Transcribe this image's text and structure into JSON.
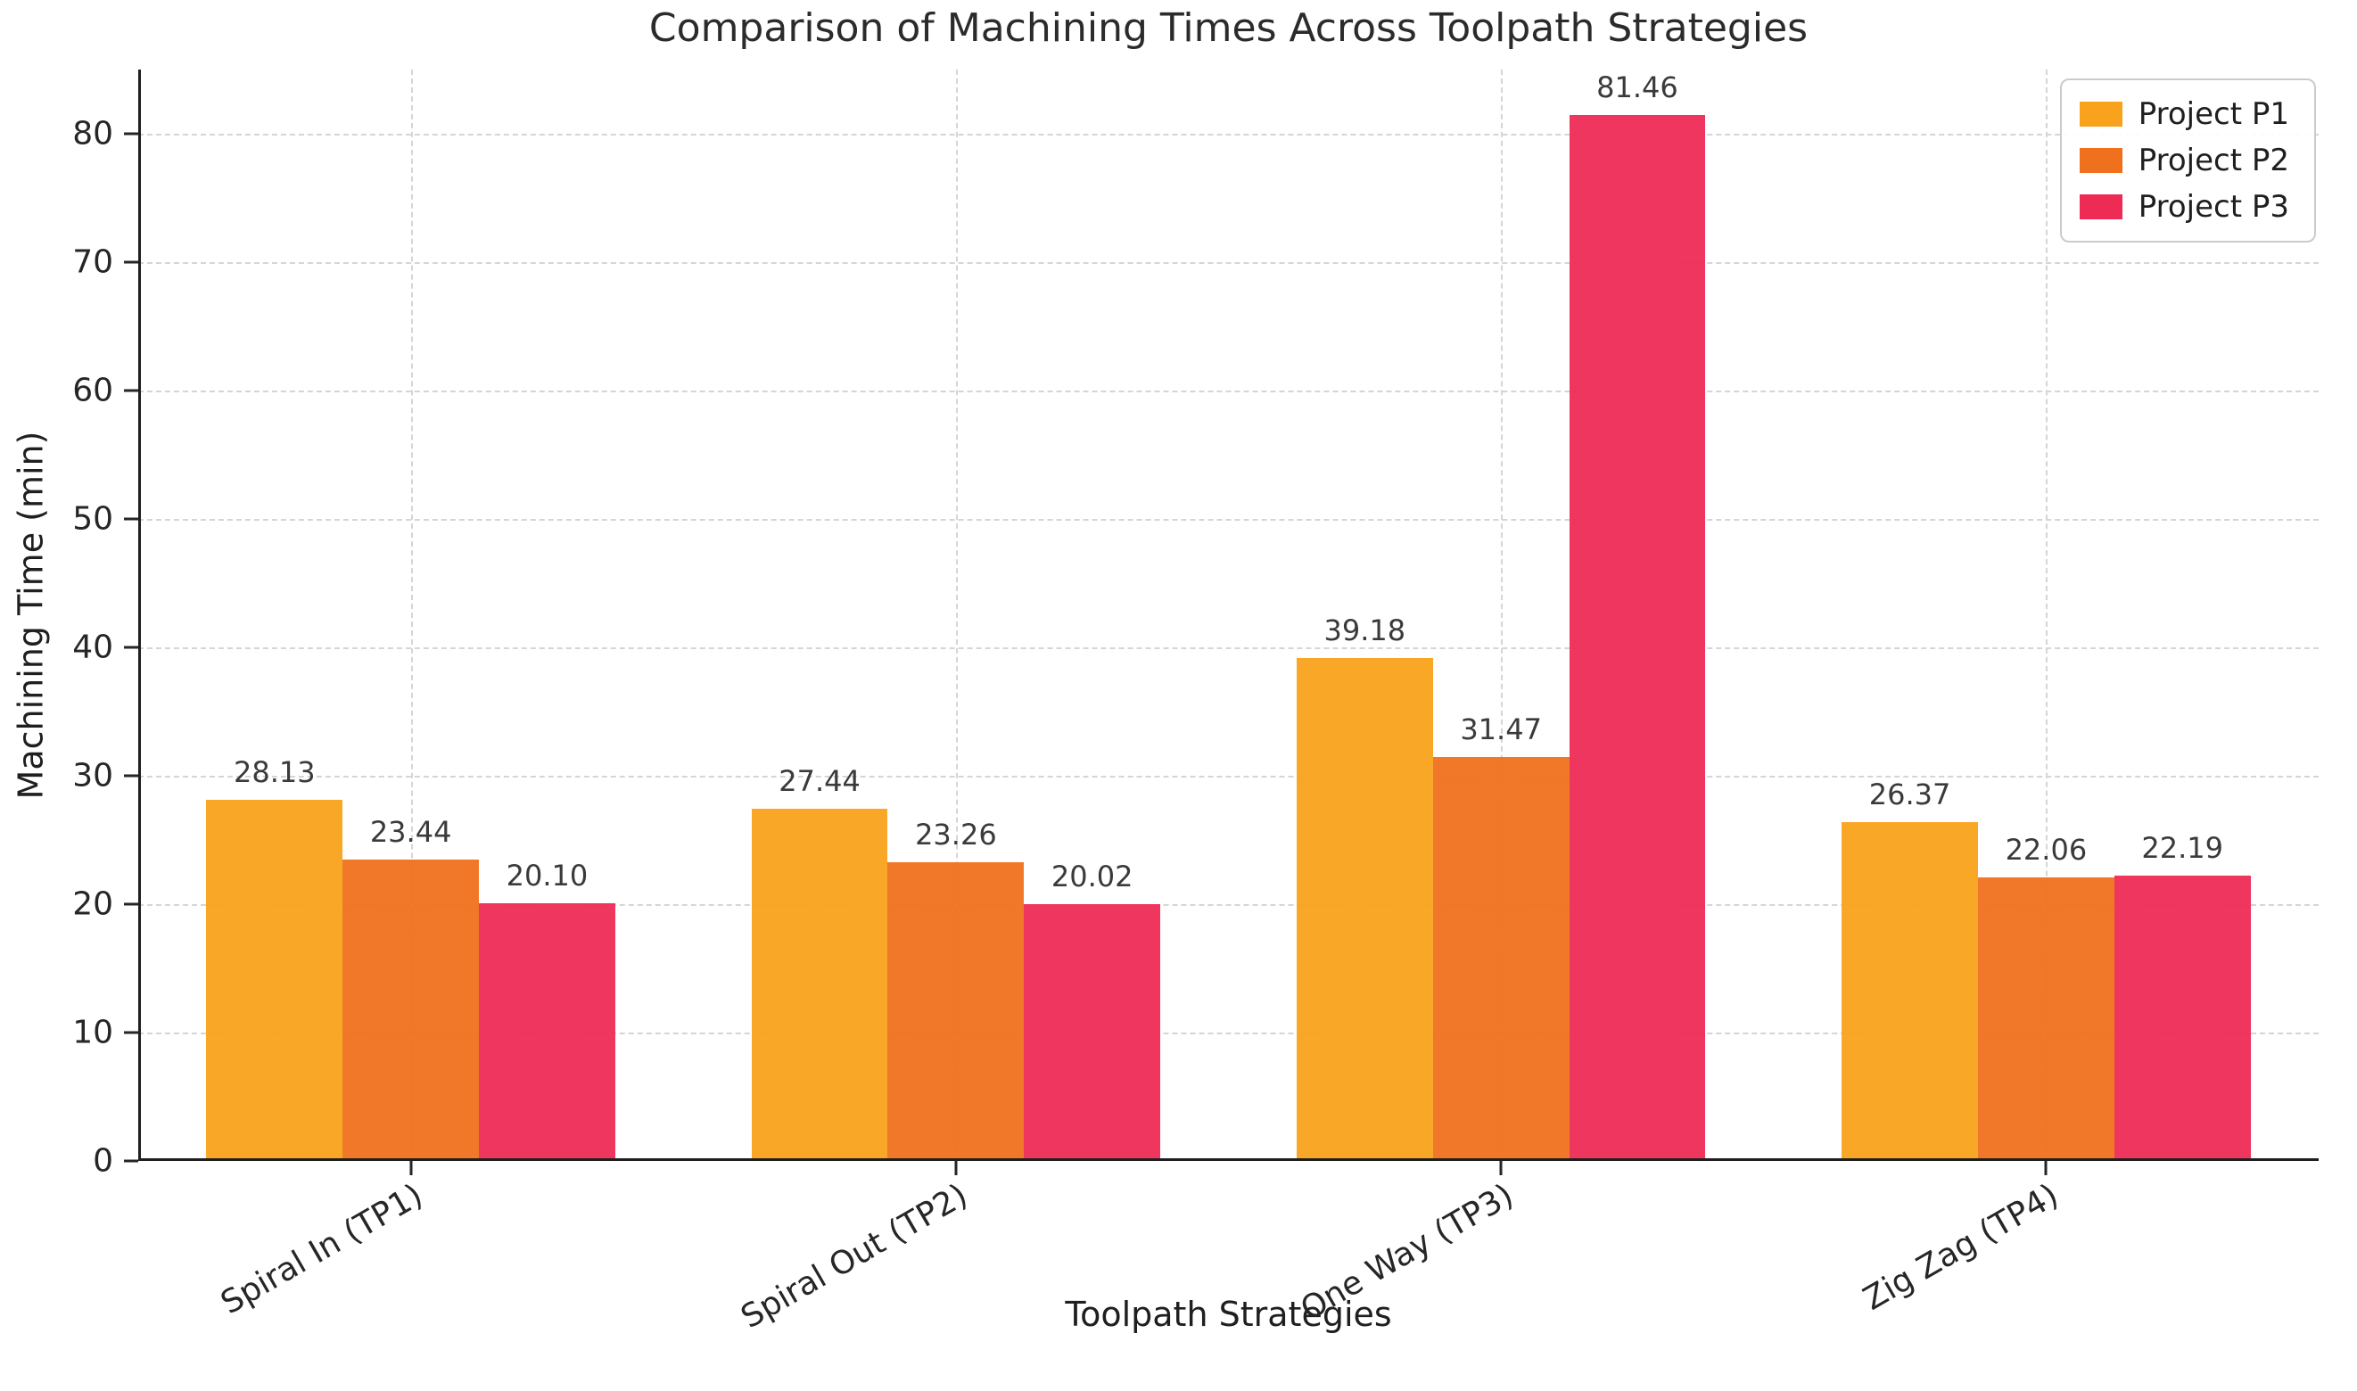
{
  "chart_data": {
    "type": "bar",
    "title": "Comparison of Machining Times Across Toolpath Strategies",
    "xlabel": "Toolpath Strategies",
    "ylabel": "Machining Time (min)",
    "categories": [
      "Spiral In (TP1)",
      "Spiral Out (TP2)",
      "One Way (TP3)",
      "Zig Zag (TP4)"
    ],
    "series": [
      {
        "name": "Project P1",
        "color": "#F9A21B",
        "values": [
          28.13,
          27.44,
          39.18,
          26.37
        ]
      },
      {
        "name": "Project P2",
        "color": "#F0711D",
        "values": [
          23.44,
          23.26,
          31.47,
          22.06
        ]
      },
      {
        "name": "Project P3",
        "color": "#EE2B55",
        "values": [
          20.1,
          20.02,
          81.46,
          22.19
        ]
      }
    ],
    "ylim": [
      0,
      85
    ],
    "yticks": [
      0,
      10,
      20,
      30,
      40,
      50,
      60,
      70,
      80
    ],
    "grid": true,
    "grid_style": "dashed",
    "xtick_rotation": 30,
    "legend_position": "upper right",
    "value_label_format": ".2f"
  }
}
